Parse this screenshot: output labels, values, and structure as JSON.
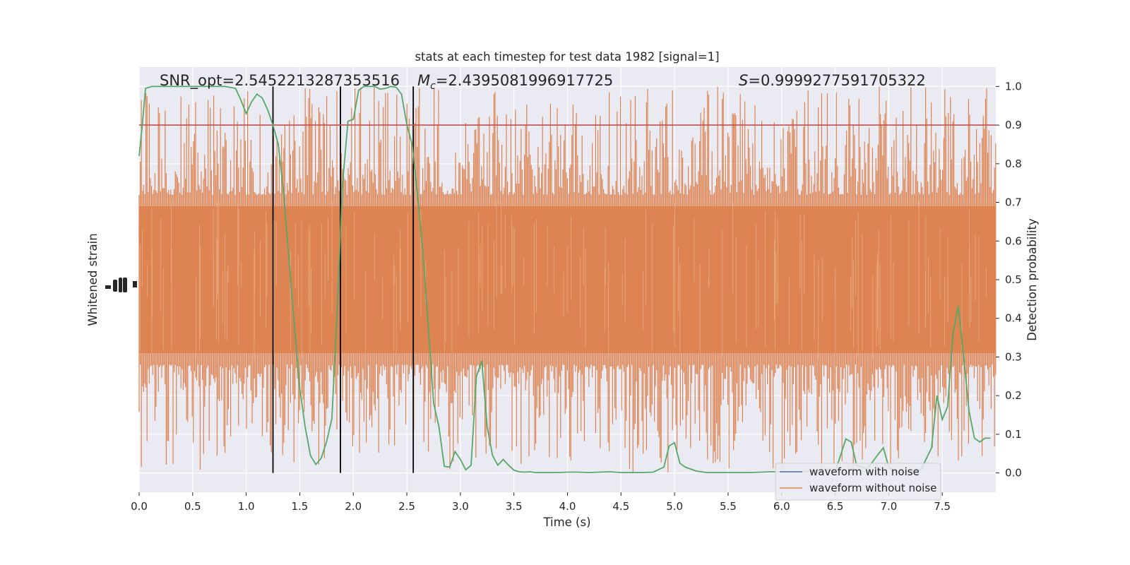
{
  "chart_data": {
    "type": "line",
    "title": "stats at each timestep for test data 1982 [signal=1]",
    "xlabel": "Time (s)",
    "ylabel_left": "Whitened strain",
    "ylabel_right": "Detection probability",
    "xlim": [
      0,
      8
    ],
    "ylim_right": [
      -0.05,
      1.05
    ],
    "grid": true,
    "legend_position": "lower-right",
    "x_ticks": [
      "0.0",
      "0.5",
      "1.0",
      "1.5",
      "2.0",
      "2.5",
      "3.0",
      "3.5",
      "4.0",
      "4.5",
      "5.0",
      "5.5",
      "6.0",
      "6.5",
      "7.0",
      "7.5"
    ],
    "y_right_ticks": [
      "0.0",
      "0.1",
      "0.2",
      "0.3",
      "0.4",
      "0.5",
      "0.6",
      "0.7",
      "0.8",
      "0.9",
      "1.0"
    ],
    "annotations": {
      "snr": "SNR_opt=2.5452213287353516",
      "mc_symbol": "M",
      "mc_sub": "c",
      "mc_value": "=2.4395081996917725",
      "s_symbol": "S",
      "s_value": "=0.9999277591705322"
    },
    "threshold": 0.9,
    "vlines": [
      1.25,
      1.88,
      2.56
    ],
    "series": [
      {
        "name": "waveform with noise",
        "color": "#4c72b0"
      },
      {
        "name": "waveform without noise",
        "color": "#dd8452"
      }
    ],
    "strain_band": {
      "color": "#dd8452",
      "center": 0.5,
      "base_halfwidth": 0.19,
      "max_spike_halfwidth": 0.45
    },
    "probability": {
      "color": "#55a868",
      "x": [
        0.0,
        0.03,
        0.06,
        0.12,
        0.2,
        0.3,
        0.4,
        0.5,
        0.6,
        0.7,
        0.8,
        0.9,
        0.95,
        1.0,
        1.05,
        1.1,
        1.15,
        1.2,
        1.25,
        1.3,
        1.35,
        1.4,
        1.45,
        1.5,
        1.55,
        1.6,
        1.65,
        1.7,
        1.75,
        1.8,
        1.85,
        1.9,
        1.95,
        2.0,
        2.05,
        2.1,
        2.15,
        2.2,
        2.25,
        2.3,
        2.35,
        2.4,
        2.45,
        2.5,
        2.55,
        2.6,
        2.65,
        2.7,
        2.75,
        2.8,
        2.85,
        2.9,
        2.95,
        3.0,
        3.05,
        3.1,
        3.15,
        3.2,
        3.25,
        3.3,
        3.35,
        3.4,
        3.45,
        3.5,
        3.55,
        3.6,
        3.65,
        3.7,
        3.8,
        3.9,
        4.0,
        4.1,
        4.2,
        4.3,
        4.4,
        4.5,
        4.6,
        4.7,
        4.8,
        4.9,
        4.95,
        5.0,
        5.05,
        5.1,
        5.2,
        5.3,
        5.4,
        5.5,
        5.7,
        5.9,
        6.1,
        6.3,
        6.4,
        6.5,
        6.6,
        6.65,
        6.7,
        6.8,
        6.9,
        6.95,
        7.0,
        7.05,
        7.1,
        7.2,
        7.3,
        7.4,
        7.45,
        7.5,
        7.55,
        7.6,
        7.65,
        7.7,
        7.75,
        7.8,
        7.85,
        7.9,
        7.95
      ],
      "y": [
        0.82,
        0.9,
        0.995,
        1.0,
        1.0,
        1.0,
        1.0,
        1.0,
        1.0,
        1.0,
        1.0,
        0.995,
        0.965,
        0.93,
        0.96,
        0.98,
        0.97,
        0.94,
        0.9,
        0.85,
        0.72,
        0.55,
        0.38,
        0.22,
        0.12,
        0.045,
        0.022,
        0.038,
        0.08,
        0.14,
        0.42,
        0.75,
        0.91,
        0.915,
        0.99,
        1.0,
        1.0,
        1.0,
        0.993,
        0.995,
        1.0,
        0.998,
        0.98,
        0.9,
        0.85,
        0.72,
        0.57,
        0.38,
        0.18,
        0.12,
        0.017,
        0.015,
        0.055,
        0.035,
        0.008,
        0.02,
        0.25,
        0.29,
        0.12,
        0.045,
        0.02,
        0.035,
        0.02,
        0.007,
        0.003,
        0.002,
        0.003,
        0.001,
        0.001,
        0.001,
        0.002,
        0.002,
        0.001,
        0.002,
        0.003,
        0.001,
        0.001,
        0.001,
        0.002,
        0.015,
        0.07,
        0.078,
        0.025,
        0.015,
        0.005,
        0.001,
        0.001,
        0.001,
        0.001,
        0.003,
        0.003,
        0.004,
        0.01,
        0.003,
        0.088,
        0.08,
        0.02,
        0.01,
        0.048,
        0.065,
        0.015,
        0.004,
        0.002,
        0.003,
        0.008,
        0.065,
        0.2,
        0.138,
        0.172,
        0.36,
        0.432,
        0.3,
        0.16,
        0.09,
        0.08,
        0.09,
        0.09
      ]
    }
  }
}
